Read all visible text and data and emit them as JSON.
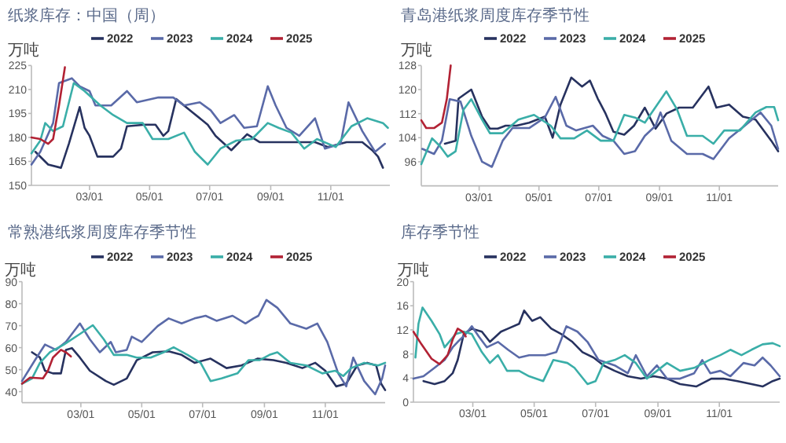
{
  "chart_data": [
    {
      "type": "line",
      "title": "纸浆库存：中国（周）",
      "ylabel": "万吨",
      "legend": "top",
      "xlim": [
        "--01-01",
        "--12-31"
      ],
      "xticks": [
        {
          "value": "--03-01",
          "label": "03/01"
        },
        {
          "value": "--05-01",
          "label": "05/01"
        },
        {
          "value": "--07-01",
          "label": "07/01"
        },
        {
          "value": "--09-01",
          "label": "09/01"
        },
        {
          "value": "--11-01",
          "label": "11/01"
        }
      ],
      "ylim": [
        150,
        225
      ],
      "yticks": [
        150,
        165,
        180,
        195,
        210,
        225
      ],
      "series": [
        {
          "name": "2022",
          "color": "#27325f",
          "x": [
            "--01-05",
            "--01-18",
            "--01-31",
            "--02-08",
            "--02-19",
            "--02-24",
            "--03-01",
            "--03-09",
            "--03-25",
            "--04-02",
            "--04-08",
            "--04-26",
            "--05-07",
            "--05-15",
            "--05-20",
            "--05-28",
            "--06-13",
            "--06-29",
            "--07-07",
            "--07-23",
            "--08-08",
            "--08-21",
            "--09-14",
            "--10-16",
            "--10-29",
            "--11-17",
            "--12-03",
            "--12-13",
            "--12-19",
            "--12-24"
          ],
          "values": [
            171,
            163,
            161,
            176,
            199,
            186,
            181,
            168,
            168,
            173,
            187,
            188,
            188,
            181,
            184,
            204,
            196,
            188,
            181,
            172,
            182,
            177,
            177,
            177,
            174,
            177,
            177,
            172,
            168,
            161
          ]
        },
        {
          "name": "2023",
          "color": "#5a6aa8",
          "x": [
            "--01-01",
            "--01-10",
            "--01-23",
            "--01-29",
            "--02-11",
            "--02-19",
            "--03-01",
            "--03-07",
            "--03-23",
            "--04-08",
            "--04-18",
            "--05-10",
            "--05-25",
            "--06-05",
            "--06-21",
            "--07-02",
            "--07-12",
            "--07-26",
            "--08-05",
            "--08-18",
            "--08-29",
            "--09-06",
            "--09-17",
            "--09-30",
            "--10-16",
            "--10-26",
            "--11-11",
            "--11-19",
            "--12-03",
            "--12-16",
            "--12-26"
          ],
          "values": [
            163,
            171,
            189,
            214,
            217,
            212,
            209,
            200,
            200,
            209,
            202,
            205,
            205,
            200,
            202,
            197,
            189,
            194,
            186,
            187,
            212,
            200,
            186,
            181,
            192,
            173,
            176,
            202,
            184,
            171,
            176
          ]
        },
        {
          "name": "2024",
          "color": "#3aaea8",
          "x": [
            "--01-01",
            "--01-10",
            "--01-15",
            "--01-23",
            "--02-02",
            "--02-13",
            "--02-24",
            "--03-12",
            "--03-25",
            "--04-08",
            "--04-24",
            "--05-04",
            "--05-20",
            "--06-05",
            "--06-16",
            "--06-29",
            "--07-12",
            "--07-28",
            "--08-13",
            "--08-29",
            "--09-09",
            "--09-22",
            "--10-05",
            "--10-18",
            "--11-06",
            "--11-22",
            "--12-08",
            "--12-24",
            "--12-29"
          ],
          "values": [
            170,
            178,
            189,
            184,
            187,
            214,
            209,
            200,
            194,
            189,
            189,
            179,
            179,
            183,
            171,
            163,
            173,
            178,
            179,
            189,
            186,
            183,
            173,
            179,
            174,
            187,
            192,
            189,
            186
          ]
        },
        {
          "name": "2025",
          "color": "#b22234",
          "x": [
            "--01-01",
            "--01-10",
            "--01-18",
            "--01-23",
            "--01-29",
            "--02-04"
          ],
          "values": [
            180,
            179,
            176,
            179,
            200,
            224
          ]
        }
      ]
    },
    {
      "type": "line",
      "title": "青岛港纸浆周度库存季节性",
      "ylabel": "万吨",
      "legend": "top",
      "xlim": [
        "--01-01",
        "--12-31"
      ],
      "xticks": [
        {
          "value": "--03-01",
          "label": "03/01"
        },
        {
          "value": "--05-01",
          "label": "05/01"
        },
        {
          "value": "--07-01",
          "label": "07/01"
        },
        {
          "value": "--09-01",
          "label": "09/01"
        },
        {
          "value": "--11-01",
          "label": "11/01"
        }
      ],
      "ylim": [
        88,
        128
      ],
      "yticks": [
        96,
        104,
        112,
        120,
        128
      ],
      "series": [
        {
          "name": "2022",
          "color": "#27325f",
          "x": [
            "--01-25",
            "--02-05",
            "--02-08",
            "--02-21",
            "--03-04",
            "--03-12",
            "--03-20",
            "--03-28",
            "--04-08",
            "--04-21",
            "--05-07",
            "--05-15",
            "--05-23",
            "--06-03",
            "--06-14",
            "--06-22",
            "--06-30",
            "--07-08",
            "--07-16",
            "--07-27",
            "--08-06",
            "--08-17",
            "--08-28",
            "--09-08",
            "--09-21",
            "--10-05",
            "--10-21",
            "--10-29",
            "--11-11",
            "--11-25",
            "--12-08",
            "--12-24",
            "--12-31"
          ],
          "values": [
            102,
            103,
            117,
            120,
            111,
            107,
            107,
            108,
            108,
            109,
            111,
            104,
            115,
            124,
            121,
            123,
            117,
            112,
            106,
            105,
            108,
            114,
            107,
            112,
            114,
            114,
            121,
            114,
            115,
            111,
            110,
            103,
            99.5
          ]
        },
        {
          "name": "2023",
          "color": "#5a6aa8",
          "x": [
            "--01-02",
            "--01-14",
            "--01-22",
            "--01-30",
            "--02-10",
            "--02-21",
            "--03-04",
            "--03-14",
            "--03-25",
            "--04-04",
            "--04-21",
            "--05-07",
            "--05-18",
            "--05-29",
            "--06-08",
            "--06-25",
            "--07-05",
            "--07-16",
            "--07-27",
            "--08-07",
            "--08-17",
            "--08-28",
            "--09-02",
            "--09-13",
            "--09-29",
            "--10-15",
            "--10-26",
            "--11-11",
            "--11-27",
            "--12-13",
            "--12-24",
            "--12-31"
          ],
          "values": [
            100.3,
            98.6,
            103,
            116.8,
            116,
            104.6,
            96,
            94.3,
            103,
            107.2,
            107.2,
            110.7,
            117.6,
            108,
            106.4,
            108,
            104.6,
            103,
            98.6,
            99.5,
            104.6,
            108,
            112.4,
            103,
            98.6,
            98.6,
            96.9,
            103.8,
            108,
            112.4,
            108,
            100.3
          ]
        },
        {
          "name": "2024",
          "color": "#3aaea8",
          "x": [
            "--01-01",
            "--01-12",
            "--01-20",
            "--01-28",
            "--02-05",
            "--02-13",
            "--02-21",
            "--03-04",
            "--03-12",
            "--03-25",
            "--04-10",
            "--04-26",
            "--05-13",
            "--05-23",
            "--06-06",
            "--06-19",
            "--07-03",
            "--07-16",
            "--07-27",
            "--08-07",
            "--08-17",
            "--08-28",
            "--09-08",
            "--09-19",
            "--09-29",
            "--10-15",
            "--10-26",
            "--11-06",
            "--11-22",
            "--12-08",
            "--12-19",
            "--12-27",
            "--12-31"
          ],
          "values": [
            95.2,
            103.8,
            101.2,
            97.7,
            99.5,
            113.3,
            116.8,
            110,
            105.5,
            105.5,
            110,
            111.6,
            108,
            103.8,
            103.8,
            106.4,
            103,
            103,
            111.6,
            110.7,
            109,
            114.2,
            119.4,
            113.3,
            104.6,
            104.6,
            102,
            106.4,
            106.4,
            112.4,
            114.2,
            114.2,
            109.8
          ]
        },
        {
          "name": "2025",
          "color": "#b22234",
          "x": [
            "--01-01",
            "--01-06",
            "--01-14",
            "--01-22",
            "--01-27",
            "--01-31"
          ],
          "values": [
            109.8,
            107.2,
            107.2,
            109,
            116.8,
            128
          ]
        }
      ]
    },
    {
      "type": "line",
      "title": "常熟港纸浆周度库存季节性",
      "ylabel": "万吨",
      "legend": "top",
      "xlim": [
        "--01-01",
        "--12-31"
      ],
      "xticks": [
        {
          "value": "--03-01",
          "label": "03/01"
        },
        {
          "value": "--05-01",
          "label": "05/01"
        },
        {
          "value": "--07-01",
          "label": "07/01"
        },
        {
          "value": "--09-01",
          "label": "09/01"
        },
        {
          "value": "--11-01",
          "label": "11/01"
        }
      ],
      "ylim": [
        35,
        90
      ],
      "yticks": [
        40,
        50,
        60,
        70,
        80,
        90
      ],
      "series": [
        {
          "name": "2022",
          "color": "#27325f",
          "x": [
            "--01-11",
            "--01-19",
            "--01-24",
            "--02-01",
            "--02-09",
            "--02-14",
            "--02-20",
            "--02-28",
            "--03-10",
            "--03-26",
            "--04-03",
            "--04-16",
            "--04-26",
            "--05-12",
            "--05-28",
            "--06-10",
            "--06-23",
            "--07-09",
            "--07-25",
            "--08-09",
            "--08-25",
            "--09-10",
            "--09-23",
            "--10-09",
            "--10-22",
            "--11-01",
            "--11-12",
            "--11-22",
            "--12-03",
            "--12-13",
            "--12-22",
            "--12-27",
            "--12-31"
          ],
          "values": [
            57.9,
            55.5,
            49.5,
            48.3,
            48.3,
            59,
            59.8,
            55.5,
            49.5,
            44.8,
            43.1,
            46,
            54.3,
            57.9,
            58.3,
            56.7,
            53.1,
            55,
            50.7,
            51.9,
            55,
            54.3,
            53.1,
            50.7,
            53.1,
            49.5,
            42.4,
            43.6,
            51.9,
            53.1,
            51.9,
            43.6,
            40.7
          ]
        },
        {
          "name": "2023",
          "color": "#5a6aa8",
          "x": [
            "--01-01",
            "--01-14",
            "--01-24",
            "--02-04",
            "--02-14",
            "--02-28",
            "--03-10",
            "--03-20",
            "--03-31",
            "--04-05",
            "--04-16",
            "--04-21",
            "--05-01",
            "--05-17",
            "--05-28",
            "--06-10",
            "--06-23",
            "--07-04",
            "--07-15",
            "--07-31",
            "--08-13",
            "--08-21",
            "--08-26",
            "--09-03",
            "--09-14",
            "--09-27",
            "--10-13",
            "--10-24",
            "--11-03",
            "--11-14",
            "--11-22",
            "--11-29",
            "--12-10",
            "--12-21",
            "--12-28",
            "--12-31"
          ],
          "values": [
            44.8,
            54.3,
            61.4,
            59,
            62.6,
            71,
            63.8,
            57.9,
            62.6,
            57.9,
            59,
            65,
            62.6,
            69.8,
            73.3,
            71,
            73.3,
            74.5,
            72.2,
            74.5,
            71,
            73.3,
            74.5,
            81.7,
            78.1,
            71,
            68.6,
            71,
            62.6,
            48.3,
            42.4,
            55.5,
            44.8,
            38.8,
            46,
            51.9
          ]
        },
        {
          "name": "2024",
          "color": "#3aaea8",
          "x": [
            "--01-01",
            "--01-11",
            "--01-19",
            "--01-29",
            "--02-12",
            "--02-28",
            "--03-13",
            "--03-24",
            "--04-03",
            "--04-16",
            "--04-26",
            "--05-10",
            "--05-23",
            "--06-02",
            "--06-16",
            "--06-29",
            "--07-09",
            "--07-20",
            "--08-05",
            "--08-16",
            "--08-27",
            "--09-06",
            "--09-14",
            "--09-27",
            "--10-13",
            "--10-29",
            "--11-11",
            "--11-19",
            "--11-27",
            "--12-10",
            "--12-24",
            "--12-31"
          ],
          "values": [
            43.6,
            46,
            53.1,
            57.9,
            61.4,
            66.2,
            70.2,
            63.8,
            56.7,
            56.7,
            55.5,
            55.5,
            57.9,
            60.2,
            56.7,
            53.1,
            44.8,
            46,
            48.3,
            54.3,
            54.3,
            56.7,
            57.9,
            53.1,
            51.9,
            48.3,
            49.5,
            47.1,
            50.7,
            53.1,
            51.9,
            53.1
          ]
        },
        {
          "name": "2025",
          "color": "#b22234",
          "x": [
            "--01-01",
            "--01-09",
            "--01-22",
            "--01-27",
            "--02-01",
            "--02-09",
            "--02-14",
            "--02-19"
          ],
          "values": [
            43.6,
            46.4,
            46,
            49.5,
            55.5,
            59,
            57.9,
            56
          ]
        }
      ]
    },
    {
      "type": "line",
      "title": "库存季节性",
      "ylabel": "万吨",
      "legend": "top",
      "xlim": [
        "--01-01",
        "--12-31"
      ],
      "xticks": [
        {
          "value": "--03-01",
          "label": "03/01"
        },
        {
          "value": "--05-01",
          "label": "05/01"
        },
        {
          "value": "--07-01",
          "label": "07/01"
        },
        {
          "value": "--09-01",
          "label": "09/01"
        },
        {
          "value": "--11-01",
          "label": "11/01"
        }
      ],
      "ylim": [
        0,
        20
      ],
      "yticks": [
        0,
        4,
        8,
        12,
        16,
        20
      ],
      "series": [
        {
          "name": "2022",
          "color": "#27325f",
          "x": [
            "--01-11",
            "--01-22",
            "--02-01",
            "--02-09",
            "--02-14",
            "--02-20",
            "--02-28",
            "--03-10",
            "--03-18",
            "--03-29",
            "--04-05",
            "--04-16",
            "--04-21",
            "--04-29",
            "--05-07",
            "--05-18",
            "--05-28",
            "--06-08",
            "--06-18",
            "--06-29",
            "--07-09",
            "--07-20",
            "--08-02",
            "--08-15",
            "--08-28",
            "--09-10",
            "--09-23",
            "--10-09",
            "--10-24",
            "--11-05",
            "--11-19",
            "--12-03",
            "--12-14",
            "--12-24",
            "--12-31"
          ],
          "values": [
            3.5,
            3,
            3.5,
            4.8,
            7,
            11.3,
            12.2,
            11.7,
            10,
            11.7,
            12.2,
            13,
            15.2,
            13.5,
            14.1,
            12.2,
            11.3,
            10,
            8.3,
            7.4,
            6.1,
            5.2,
            4.3,
            3.9,
            4.3,
            3.9,
            3,
            2.6,
            3.9,
            3.9,
            3.5,
            3,
            2.6,
            3.5,
            3.9
          ]
        },
        {
          "name": "2023",
          "color": "#5a6aa8",
          "x": [
            "--01-01",
            "--01-11",
            "--01-22",
            "--02-01",
            "--02-09",
            "--02-14",
            "--02-22",
            "--02-28",
            "--03-07",
            "--03-15",
            "--03-26",
            "--04-05",
            "--04-16",
            "--04-26",
            "--05-12",
            "--05-23",
            "--06-02",
            "--06-13",
            "--06-23",
            "--07-04",
            "--07-20",
            "--08-02",
            "--08-10",
            "--08-21",
            "--08-31",
            "--09-10",
            "--09-23",
            "--10-07",
            "--10-15",
            "--10-23",
            "--11-02",
            "--11-12",
            "--11-25",
            "--12-06",
            "--12-14",
            "--12-22",
            "--12-31"
          ],
          "values": [
            3.9,
            4.3,
            5.7,
            7,
            9.1,
            10,
            11.3,
            12.6,
            10.9,
            9.1,
            10,
            8.7,
            7.4,
            7.8,
            7.8,
            8.3,
            12.6,
            11.7,
            10,
            7,
            6.1,
            4.8,
            7.8,
            4.3,
            6.1,
            3.9,
            3.9,
            4.8,
            7,
            4.8,
            5.2,
            4.3,
            6.5,
            6.1,
            7.4,
            6.1,
            4.3
          ]
        },
        {
          "name": "2024",
          "color": "#3aaea8",
          "x": [
            "--01-03",
            "--01-06",
            "--01-10",
            "--01-19",
            "--01-27",
            "--02-01",
            "--02-12",
            "--02-20",
            "--02-28",
            "--03-10",
            "--03-18",
            "--03-26",
            "--04-04",
            "--04-16",
            "--04-26",
            "--05-10",
            "--05-20",
            "--06-03",
            "--06-10",
            "--06-23",
            "--07-01",
            "--07-09",
            "--07-20",
            "--07-30",
            "--08-10",
            "--08-21",
            "--08-31",
            "--09-10",
            "--09-23",
            "--10-07",
            "--10-22",
            "--11-02",
            "--11-12",
            "--11-23",
            "--12-03",
            "--12-14",
            "--12-24",
            "--12-31"
          ],
          "values": [
            7.4,
            13,
            15.7,
            13.5,
            11.3,
            9.1,
            11.3,
            11.7,
            11.3,
            8.3,
            6.5,
            7.8,
            5.2,
            5.2,
            4.3,
            3.5,
            7,
            6.5,
            5.7,
            3,
            3.5,
            6.5,
            7,
            7.8,
            6.5,
            3.9,
            5.2,
            6.5,
            5.2,
            5.7,
            7,
            7.8,
            8.7,
            7.8,
            8.7,
            9.6,
            9.8,
            9.3
          ]
        },
        {
          "name": "2025",
          "color": "#b22234",
          "x": [
            "--01-01",
            "--01-09",
            "--01-19",
            "--01-27",
            "--02-04",
            "--02-09",
            "--02-14",
            "--02-19",
            "--02-22"
          ],
          "values": [
            11.7,
            9.6,
            7.2,
            6.3,
            7.8,
            10.4,
            12.2,
            11.7,
            10.9
          ]
        }
      ]
    }
  ]
}
